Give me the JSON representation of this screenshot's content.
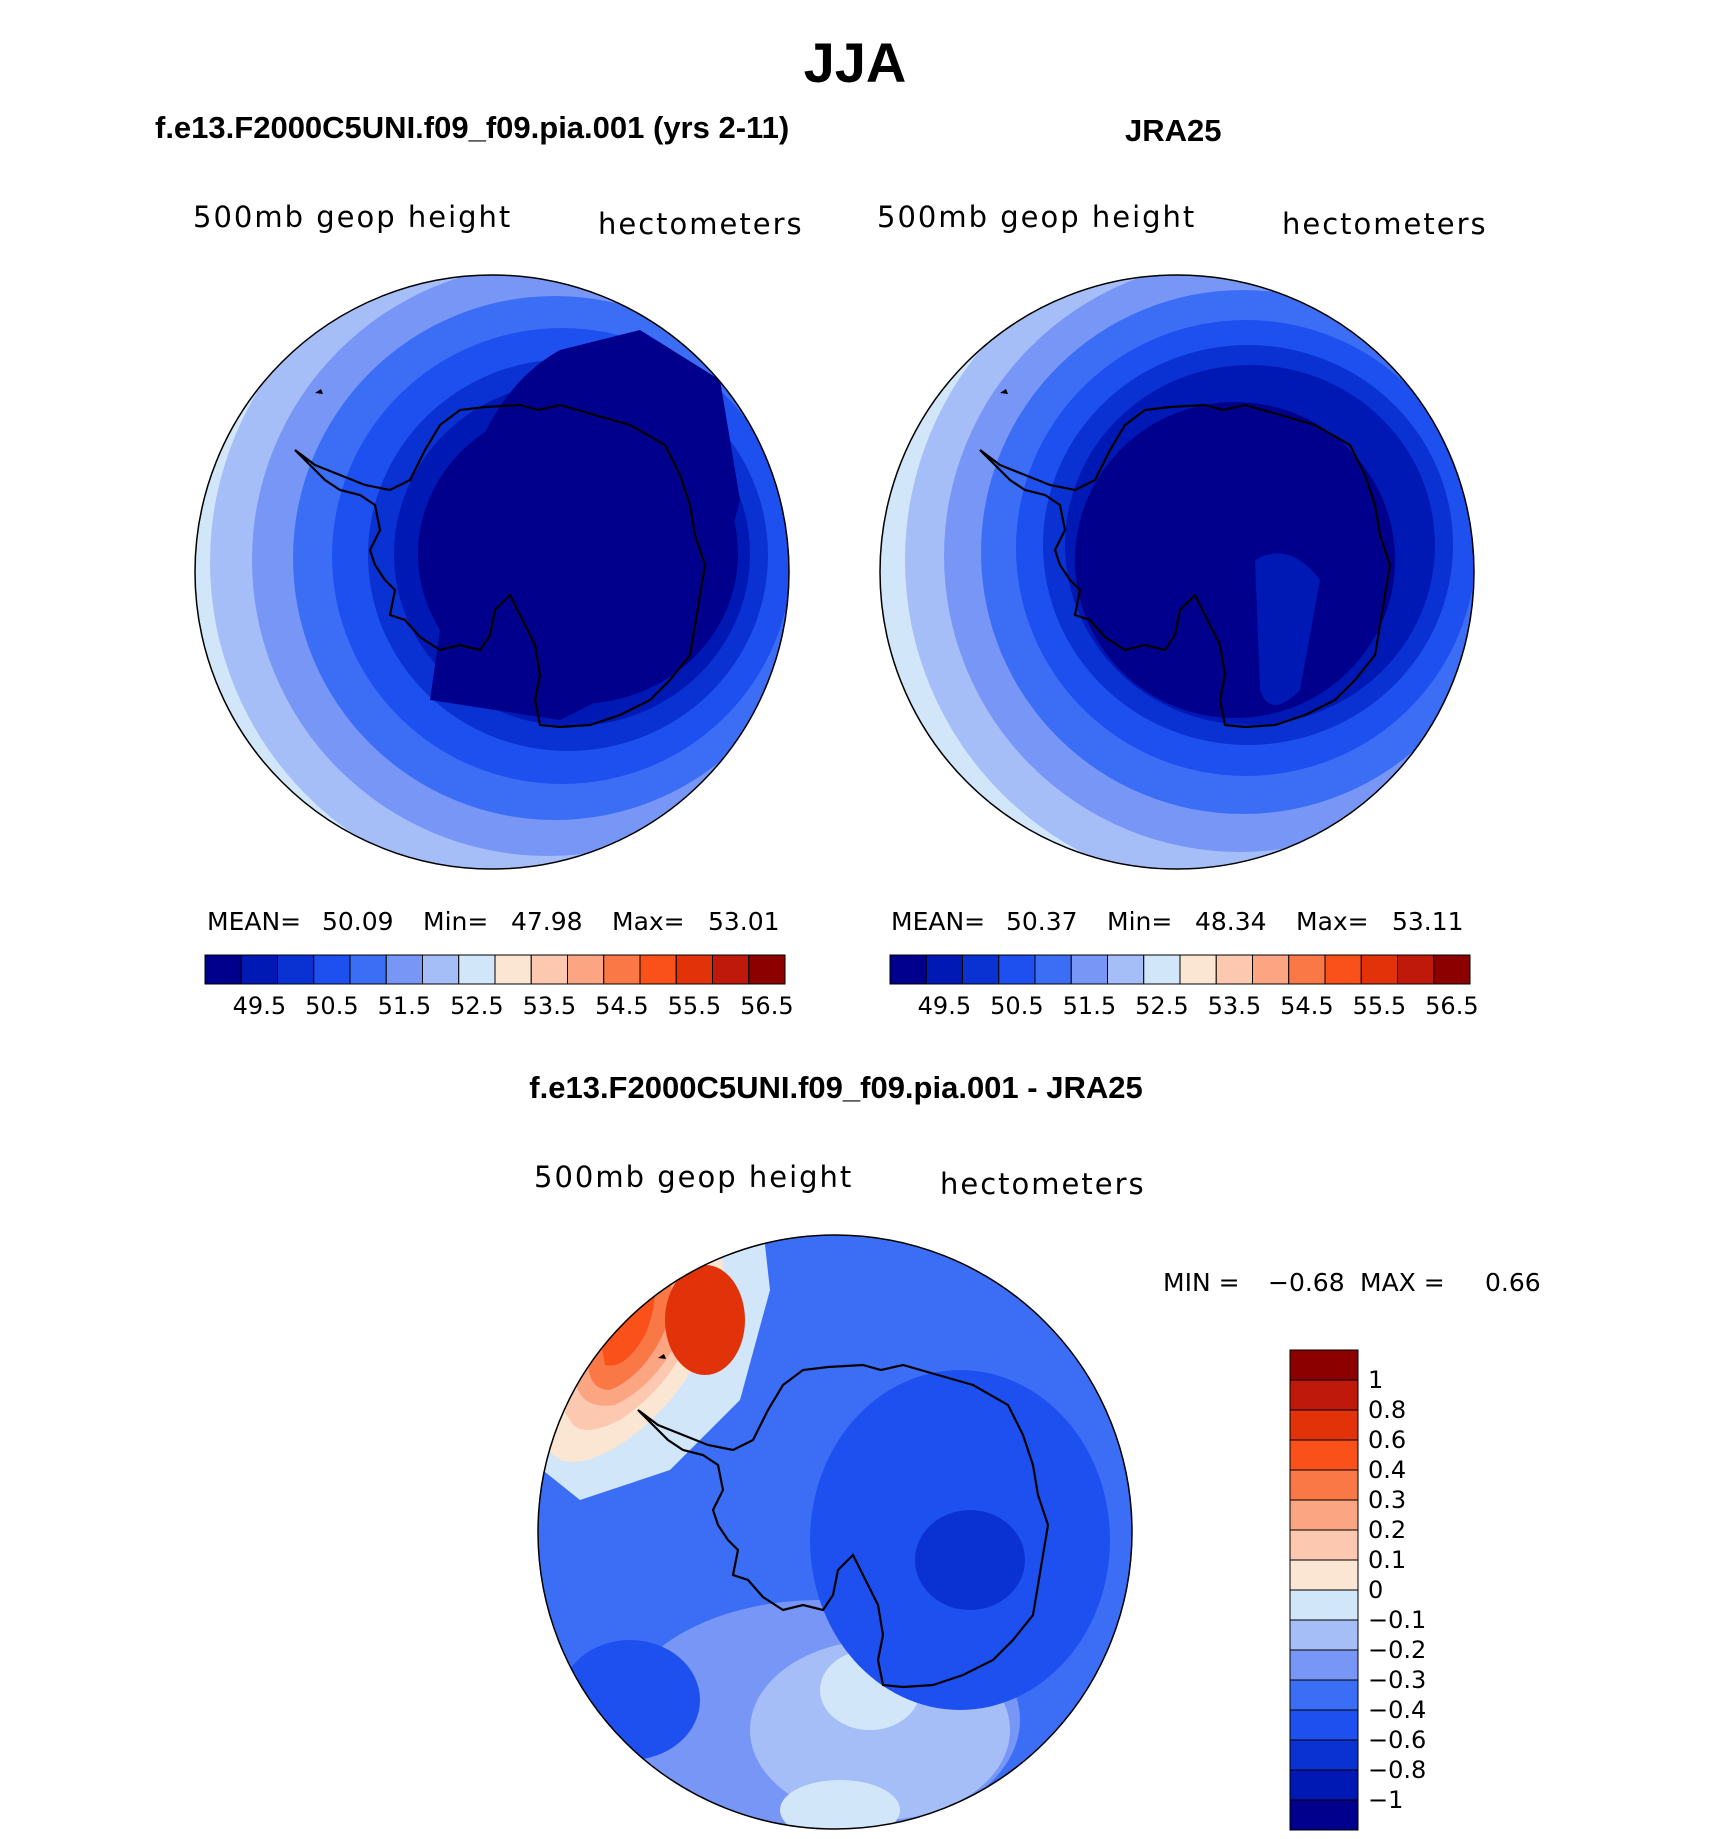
{
  "figure": {
    "title": "JJA",
    "panels": [
      {
        "title": "f.e13.F2000C5UNI.f09_f09.pia.001 (yrs 2-11)",
        "variable": "500mb geop height",
        "units": "hectometers",
        "stats": {
          "mean_label": "MEAN=",
          "mean": "50.09",
          "min_label": "Min=",
          "min": "47.98",
          "max_label": "Max=",
          "max": "53.01"
        }
      },
      {
        "title": "JRA25",
        "variable": "500mb geop height",
        "units": "hectometers",
        "stats": {
          "mean_label": "MEAN=",
          "mean": "50.37",
          "min_label": "Min=",
          "min": "48.34",
          "max_label": "Max=",
          "max": "53.11"
        }
      },
      {
        "title": "f.e13.F2000C5UNI.f09_f09.pia.001 - JRA25",
        "variable": "500mb geop height",
        "units": "hectometers",
        "stats": {
          "min_label": "MIN =",
          "min": "−0.68",
          "max_label": "MAX =",
          "max": "0.66"
        }
      }
    ],
    "colorbar_abs": {
      "tick_labels": [
        "49.5",
        "50.5",
        "51.5",
        "52.5",
        "53.5",
        "54.5",
        "55.5",
        "56.5"
      ],
      "colors": [
        "#00008c",
        "#0019b4",
        "#0a32d2",
        "#1e50f0",
        "#3c6ef5",
        "#7896f5",
        "#a5bef8",
        "#d2e6fa",
        "#fae6d2",
        "#fcc8af",
        "#fca582",
        "#fa7846",
        "#fa5019",
        "#e1320a",
        "#be190a",
        "#8c0000"
      ]
    },
    "colorbar_diff": {
      "tick_labels": [
        "1",
        "0.8",
        "0.6",
        "0.4",
        "0.3",
        "0.2",
        "0.1",
        "0",
        "−0.1",
        "−0.2",
        "−0.3",
        "−0.4",
        "−0.6",
        "−0.8",
        "−1"
      ],
      "colors": [
        "#8c0000",
        "#be190a",
        "#e1320a",
        "#fa5019",
        "#fa7846",
        "#fca582",
        "#fcc8af",
        "#fae6d2",
        "#d2e6fa",
        "#a5bef8",
        "#7896f5",
        "#3c6ef5",
        "#1e50f0",
        "#0a32d2",
        "#0019b4",
        "#00008c"
      ]
    },
    "colors": {
      "land_outline": "#000000",
      "map_border": "#000000"
    }
  }
}
